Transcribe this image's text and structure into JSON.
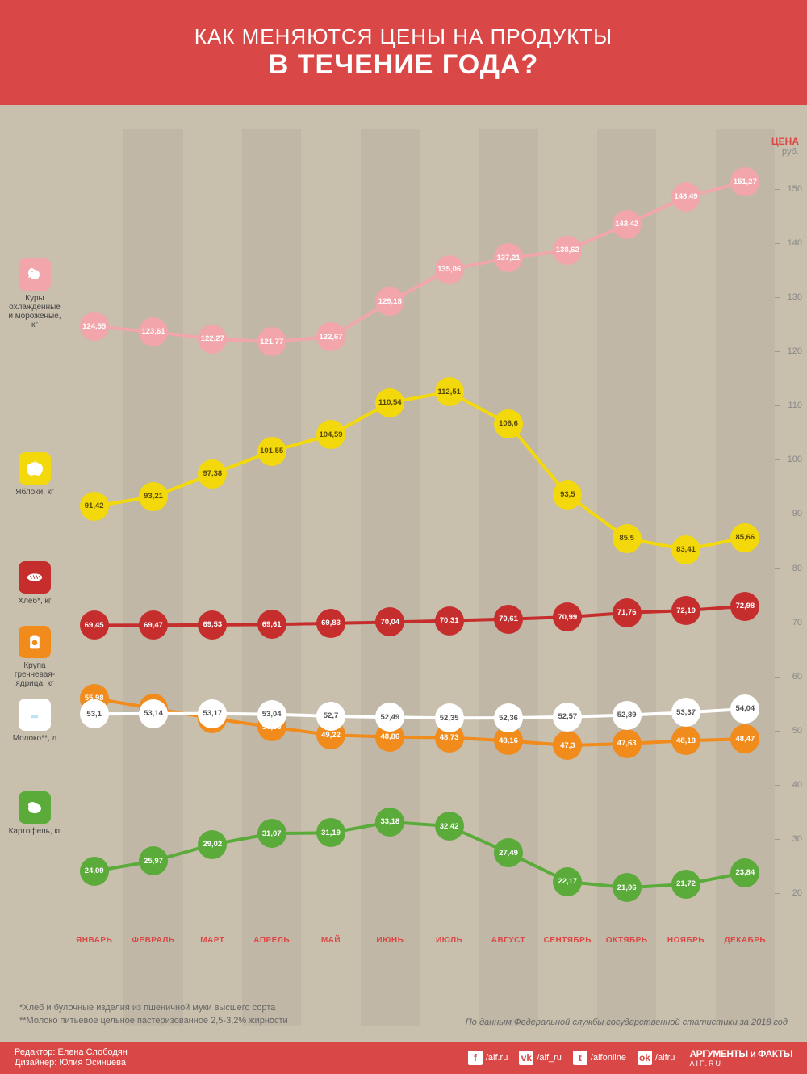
{
  "header": {
    "line1": "КАК МЕНЯЮТСЯ ЦЕНЫ НА ПРОДУКТЫ",
    "line2": "В ТЕЧЕНИЕ ГОДА?",
    "bg_color": "#d94846",
    "text_color": "#ffffff"
  },
  "chart": {
    "type": "line",
    "background_color": "#c8bfad",
    "stripe_alt_color": "rgba(0,0,0,0.04)",
    "yaxis": {
      "label": "ЦЕНА",
      "sublabel": "руб.",
      "min": 15,
      "max": 155,
      "tick_step": 10,
      "label_color": "#d94846",
      "tick_color": "#888888"
    },
    "months": [
      "ЯНВАРЬ",
      "ФЕВРАЛЬ",
      "МАРТ",
      "АПРЕЛЬ",
      "МАЙ",
      "ИЮНЬ",
      "ИЮЛЬ",
      "АВГУСТ",
      "СЕНТЯБРЬ",
      "ОКТЯБРЬ",
      "НОЯБРЬ",
      "ДЕКАБРЬ"
    ],
    "month_label_color": "#d94846",
    "marker_radius": 18,
    "line_width": 4,
    "marker_font_size": 9.5,
    "label_font_size": 10,
    "series": [
      {
        "id": "chicken",
        "label": "Куры охлажденные и мороженые, кг",
        "color": "#f2a6ab",
        "text_color": "#ffffff",
        "icon_y": 160,
        "values": [
          124.55,
          123.61,
          122.27,
          121.77,
          122.67,
          129.18,
          135.06,
          137.21,
          138.62,
          143.42,
          148.49,
          151.27
        ]
      },
      {
        "id": "apples",
        "label": "Яблоки, кг",
        "color": "#f3d90b",
        "text_color": "#5a4a00",
        "icon_y": 400,
        "values": [
          91.42,
          93.21,
          97.38,
          101.55,
          104.59,
          110.54,
          112.51,
          106.6,
          93.5,
          85.5,
          83.41,
          85.66
        ]
      },
      {
        "id": "bread",
        "label": "Хлеб*, кг",
        "color": "#c62d2d",
        "text_color": "#ffffff",
        "icon_y": 535,
        "values": [
          69.45,
          69.47,
          69.53,
          69.61,
          69.83,
          70.04,
          70.31,
          70.61,
          70.99,
          71.76,
          72.19,
          72.98
        ]
      },
      {
        "id": "buckwheat",
        "label": "Крупа гречневая-ядрица, кг",
        "color": "#f08b1c",
        "text_color": "#ffffff",
        "icon_y": 615,
        "values": [
          55.98,
          54.13,
          52.29,
          50.68,
          49.22,
          48.86,
          48.73,
          48.16,
          47.3,
          47.63,
          48.18,
          48.47
        ]
      },
      {
        "id": "milk",
        "label": "Молоко**, л",
        "color": "#ffffff",
        "text_color": "#555555",
        "icon_y": 705,
        "values": [
          53.1,
          53.14,
          53.17,
          53.04,
          52.7,
          52.49,
          52.35,
          52.36,
          52.57,
          52.89,
          53.37,
          54.04
        ]
      },
      {
        "id": "potato",
        "label": "Картофель, кг",
        "color": "#5bab3b",
        "text_color": "#ffffff",
        "icon_y": 820,
        "values": [
          24.09,
          25.97,
          29.02,
          31.07,
          31.19,
          33.18,
          32.42,
          27.49,
          22.17,
          21.06,
          21.72,
          23.84
        ]
      }
    ]
  },
  "footnotes": {
    "n1": "*Хлеб и булочные изделия из пшеничной муки высшего сорта",
    "n2": "**Молоко питьевое цельное пастеризованное 2,5-3,2% жирности"
  },
  "source": "По данным Федеральной службы государственной статистики за 2018 год",
  "footer": {
    "editor_label": "Редактор:",
    "editor": "Елена Слободян",
    "designer_label": "Дизайнер:",
    "designer": "Юлия Осинцева",
    "socials": [
      {
        "icon": "f",
        "handle": "/aif.ru"
      },
      {
        "icon": "vk",
        "handle": "/aif_ru"
      },
      {
        "icon": "t",
        "handle": "/aifonline"
      },
      {
        "icon": "ok",
        "handle": "/aifru"
      }
    ],
    "brand_top": "АРГУМЕНТЫ",
    "brand_bottom": "и ФАКТЫ",
    "brand_url": "AIF.RU"
  }
}
